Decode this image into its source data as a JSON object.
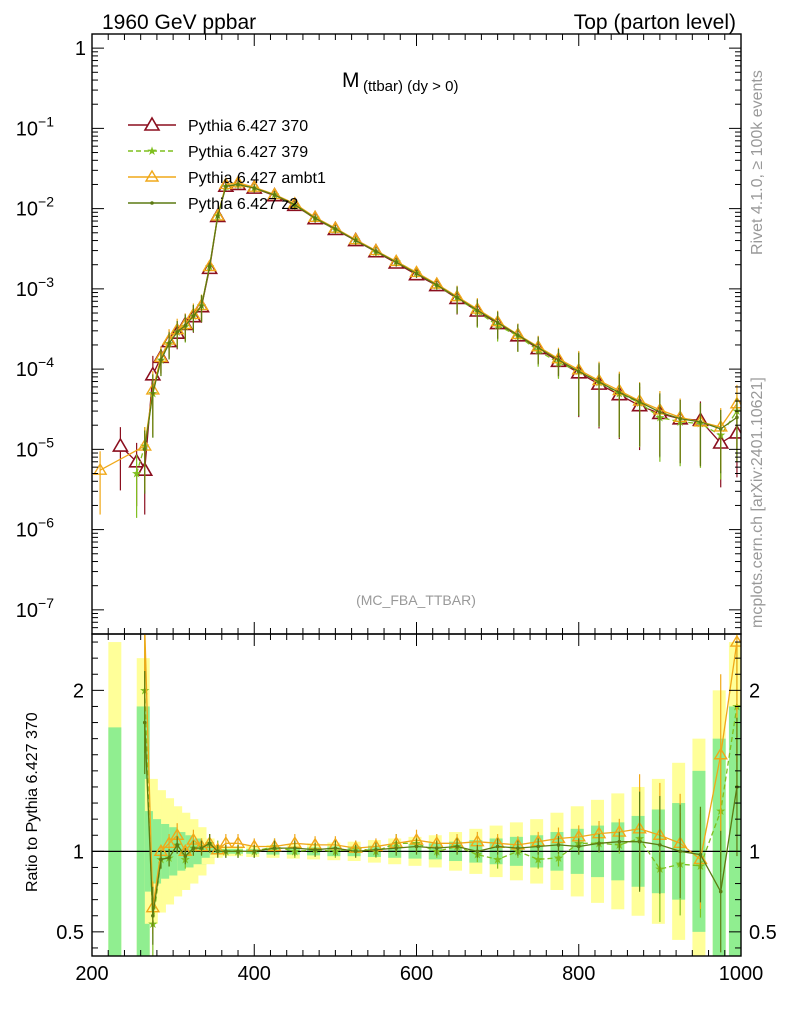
{
  "header": {
    "left": "1960 GeV ppbar",
    "right": "Top (parton level)"
  },
  "side": {
    "rivet": "Rivet 4.1.0, ≥ 100k events",
    "mcplots": "mcplots.cern.ch [arXiv:2401.10621]"
  },
  "chart_data": {
    "type": "line",
    "title_main": "M",
    "title_sub": "(ttbar) (dy > 0)",
    "analysis_tag": "(MC_FBA_TTBAR)",
    "xlabel": "",
    "ylabel_ratio": "Ratio to Pythia 6.427 370",
    "xlim": [
      200,
      1000
    ],
    "ylim_main": [
      5e-08,
      1.5
    ],
    "ylim_ratio": [
      0.35,
      2.35
    ],
    "x_ticks": [
      "200",
      "400",
      "600",
      "800",
      "1000"
    ],
    "y_ticks_main": [
      "1",
      "10^-1",
      "10^-2",
      "10^-3",
      "10^-4",
      "10^-5",
      "10^-6",
      "10^-7"
    ],
    "y_ticks_ratio": [
      "0.5",
      "1",
      "2"
    ],
    "colors": {
      "p370": "#8b0f1f",
      "p379": "#7fbf1f",
      "ambt1": "#f0a818",
      "z2": "#5c7a12",
      "band_inner": "#90ee90",
      "band_outer": "#ffff99"
    },
    "series": [
      {
        "name": "Pythia 6.427 370",
        "key": "p370",
        "marker": "triangle-open",
        "style": "solid",
        "x": [
          215,
          235,
          255,
          265,
          275,
          285,
          295,
          305,
          315,
          325,
          335,
          345,
          355,
          365,
          380,
          400,
          425,
          450,
          475,
          500,
          525,
          550,
          575,
          600,
          625,
          650,
          675,
          700,
          725,
          750,
          775,
          800,
          825,
          850,
          875,
          900,
          925,
          950,
          975,
          995
        ],
        "y": [
          null,
          1.1e-05,
          7e-06,
          5.5e-06,
          8.5e-05,
          0.00014,
          0.00022,
          0.00028,
          0.00036,
          0.00045,
          0.0006,
          0.0018,
          0.008,
          0.019,
          0.02,
          0.018,
          0.0145,
          0.011,
          0.0075,
          0.0055,
          0.004,
          0.0029,
          0.0021,
          0.0015,
          0.0011,
          0.00076,
          0.00053,
          0.00037,
          0.00026,
          0.00018,
          0.000125,
          9e-05,
          6.5e-05,
          4.8e-05,
          3.5e-05,
          2.8e-05,
          2.4e-05,
          2.3e-05,
          1.2e-05,
          1.6e-05
        ]
      },
      {
        "name": "Pythia 6.427 379",
        "key": "p379",
        "marker": "star",
        "style": "dashed",
        "x": [
          255,
          265,
          275,
          285,
          295,
          305,
          315,
          325,
          335,
          345,
          355,
          365,
          380,
          400,
          425,
          450,
          475,
          500,
          525,
          550,
          575,
          600,
          625,
          650,
          675,
          700,
          725,
          750,
          775,
          800,
          825,
          850,
          875,
          900,
          925,
          950,
          975,
          995
        ],
        "y": [
          5e-06,
          1.1e-05,
          5e-05,
          0.00013,
          0.00021,
          0.00029,
          0.00034,
          0.00046,
          0.00062,
          0.0019,
          0.0082,
          0.019,
          0.02,
          0.018,
          0.015,
          0.011,
          0.0076,
          0.0055,
          0.0041,
          0.0029,
          0.0022,
          0.0016,
          0.0011,
          0.00078,
          0.00052,
          0.00035,
          0.00026,
          0.00017,
          0.00012,
          9.5e-05,
          6.8e-05,
          5e-05,
          3.8e-05,
          2.5e-05,
          2.2e-05,
          2.1e-05,
          1.5e-05,
          3e-05
        ]
      },
      {
        "name": "Pythia 6.427 ambt1",
        "key": "ambt1",
        "marker": "triangle",
        "style": "solid",
        "x": [
          210,
          265,
          275,
          285,
          295,
          305,
          315,
          325,
          335,
          345,
          355,
          365,
          380,
          400,
          425,
          450,
          475,
          500,
          525,
          550,
          575,
          600,
          625,
          650,
          675,
          700,
          725,
          750,
          775,
          800,
          825,
          850,
          875,
          900,
          925,
          950,
          975,
          995
        ],
        "y": [
          5.5e-06,
          1.1e-05,
          5.5e-05,
          0.00014,
          0.00023,
          0.00031,
          0.00036,
          0.00048,
          0.00062,
          0.0019,
          0.0081,
          0.02,
          0.021,
          0.0185,
          0.015,
          0.0115,
          0.0078,
          0.0057,
          0.0041,
          0.003,
          0.0022,
          0.0016,
          0.00115,
          0.0008,
          0.00056,
          0.00039,
          0.00027,
          0.00019,
          0.000135,
          9.8e-05,
          7.2e-05,
          5.4e-05,
          4e-05,
          3.1e-05,
          2.5e-05,
          2.2e-05,
          1.9e-05,
          3.7e-05
        ]
      },
      {
        "name": "Pythia 6.427 z2",
        "key": "z2",
        "marker": "dot",
        "style": "solid",
        "x": [
          265,
          275,
          285,
          295,
          305,
          315,
          325,
          335,
          345,
          355,
          365,
          380,
          400,
          425,
          450,
          475,
          500,
          525,
          550,
          575,
          600,
          625,
          650,
          675,
          700,
          725,
          750,
          775,
          800,
          825,
          850,
          875,
          900,
          925,
          950,
          975,
          995
        ],
        "y": [
          1e-05,
          5e-05,
          0.00013,
          0.00021,
          0.00029,
          0.00035,
          0.00046,
          0.00061,
          0.0019,
          0.008,
          0.019,
          0.02,
          0.018,
          0.0148,
          0.0112,
          0.0076,
          0.0056,
          0.004,
          0.00295,
          0.00215,
          0.00155,
          0.00112,
          0.00078,
          0.00054,
          0.00038,
          0.000265,
          0.000185,
          0.00013,
          9.3e-05,
          6.9e-05,
          5.1e-05,
          3.9e-05,
          2.9e-05,
          2.4e-05,
          2.2e-05,
          1.8e-05,
          2.5e-05
        ]
      }
    ],
    "ratio_series": [
      {
        "key": "p379",
        "style": "dashed",
        "x": [
          265,
          275,
          285,
          295,
          305,
          315,
          325,
          335,
          345,
          355,
          365,
          380,
          400,
          425,
          450,
          475,
          500,
          525,
          550,
          575,
          600,
          625,
          650,
          675,
          700,
          725,
          750,
          775,
          800,
          825,
          850,
          875,
          900,
          925,
          950,
          975,
          995
        ],
        "y": [
          2.0,
          0.55,
          0.95,
          0.96,
          1.04,
          0.95,
          1.02,
          1.03,
          1.05,
          1.02,
          1.0,
          1.0,
          1.0,
          1.03,
          1.0,
          1.01,
          1.0,
          1.02,
          1.0,
          1.05,
          1.05,
          1.0,
          1.03,
          0.98,
          0.95,
          1.0,
          0.95,
          0.96,
          1.05,
          1.05,
          1.04,
          1.08,
          0.89,
          0.92,
          0.91,
          1.25,
          1.9
        ]
      },
      {
        "key": "ambt1",
        "style": "solid",
        "x": [
          265,
          275,
          285,
          295,
          305,
          315,
          325,
          335,
          345,
          355,
          365,
          380,
          400,
          425,
          450,
          475,
          500,
          525,
          550,
          575,
          600,
          625,
          650,
          675,
          700,
          725,
          750,
          775,
          800,
          825,
          850,
          875,
          900,
          925,
          950,
          975,
          995
        ],
        "y": [
          2.4,
          0.65,
          1.0,
          1.05,
          1.1,
          1.0,
          1.07,
          1.03,
          1.05,
          1.01,
          1.05,
          1.05,
          1.03,
          1.03,
          1.05,
          1.04,
          1.04,
          1.02,
          1.03,
          1.05,
          1.07,
          1.05,
          1.05,
          1.06,
          1.05,
          1.04,
          1.06,
          1.08,
          1.09,
          1.11,
          1.12,
          1.14,
          1.1,
          1.05,
          0.95,
          1.6,
          2.3
        ]
      },
      {
        "key": "z2",
        "style": "solid",
        "x": [
          265,
          275,
          285,
          295,
          305,
          315,
          325,
          335,
          345,
          355,
          365,
          380,
          400,
          425,
          450,
          475,
          500,
          525,
          550,
          575,
          600,
          625,
          650,
          675,
          700,
          725,
          750,
          775,
          800,
          825,
          850,
          875,
          900,
          925,
          950,
          975,
          995
        ],
        "y": [
          1.8,
          0.6,
          0.95,
          0.96,
          1.04,
          0.97,
          1.02,
          1.02,
          1.05,
          1.0,
          1.0,
          1.0,
          1.0,
          1.02,
          1.02,
          1.01,
          1.02,
          1.0,
          1.01,
          1.02,
          1.03,
          1.02,
          1.03,
          1.0,
          1.03,
          1.02,
          1.03,
          1.04,
          1.03,
          1.05,
          1.06,
          1.06,
          1.04,
          1.0,
          0.98,
          0.75,
          1.4
        ]
      }
    ],
    "ratio_bands": {
      "x": [
        230,
        265,
        275,
        285,
        295,
        305,
        315,
        325,
        335,
        345,
        355,
        365,
        380,
        400,
        425,
        450,
        475,
        500,
        525,
        550,
        575,
        600,
        625,
        650,
        675,
        700,
        725,
        750,
        775,
        800,
        825,
        850,
        875,
        900,
        925,
        950,
        975,
        995
      ],
      "inner": [
        0.77,
        0.9,
        0.25,
        0.2,
        0.17,
        0.15,
        0.12,
        0.1,
        0.08,
        0.04,
        0.02,
        0.015,
        0.015,
        0.015,
        0.02,
        0.02,
        0.025,
        0.03,
        0.03,
        0.035,
        0.04,
        0.045,
        0.05,
        0.06,
        0.07,
        0.08,
        0.09,
        0.1,
        0.12,
        0.14,
        0.16,
        0.18,
        0.22,
        0.26,
        0.3,
        0.5,
        0.7,
        0.9
      ],
      "outer": [
        1.3,
        1.2,
        0.45,
        0.38,
        0.33,
        0.28,
        0.24,
        0.2,
        0.15,
        0.08,
        0.04,
        0.03,
        0.03,
        0.035,
        0.04,
        0.045,
        0.05,
        0.055,
        0.06,
        0.07,
        0.08,
        0.09,
        0.1,
        0.12,
        0.14,
        0.16,
        0.18,
        0.2,
        0.24,
        0.28,
        0.32,
        0.36,
        0.4,
        0.45,
        0.55,
        0.7,
        1.0,
        1.3
      ]
    }
  }
}
